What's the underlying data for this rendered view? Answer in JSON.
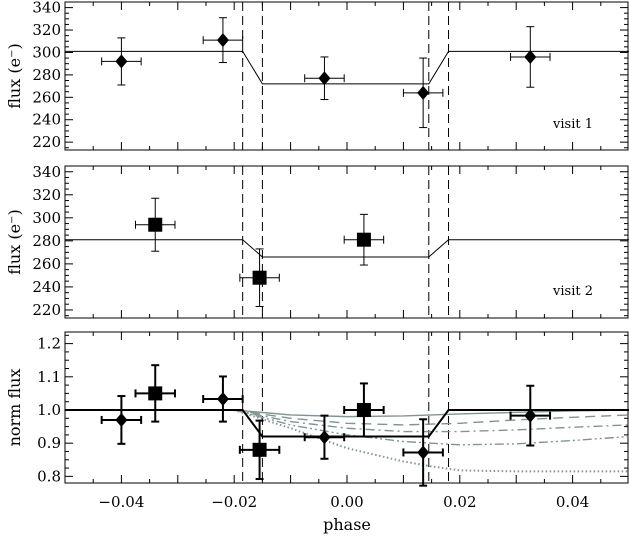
{
  "chart_data": [
    {
      "type": "scatter",
      "panel": "visit1",
      "ylabel": "flux (e⁻)",
      "annotation": "visit 1",
      "xlim": [
        -0.05,
        0.05
      ],
      "ylim": [
        213,
        345
      ],
      "yticks": [
        220,
        240,
        260,
        280,
        300,
        320,
        340
      ],
      "marker": "diamond",
      "points": [
        {
          "x": -0.04,
          "y": 292,
          "xerr": 0.0035,
          "yerr": 21
        },
        {
          "x": -0.022,
          "y": 311,
          "xerr": 0.0035,
          "yerr": 20
        },
        {
          "x": -0.004,
          "y": 277,
          "xerr": 0.0035,
          "yerr": 19
        },
        {
          "x": 0.0135,
          "y": 264,
          "xerr": 0.0035,
          "yerr": 31
        },
        {
          "x": 0.0325,
          "y": 296,
          "xerr": 0.0035,
          "yerr": 27
        }
      ],
      "model": {
        "x": [
          -0.05,
          -0.0185,
          -0.015,
          0.0145,
          0.018,
          0.05
        ],
        "y": [
          301,
          301,
          272,
          272,
          301,
          301
        ]
      },
      "vlines": [
        -0.0185,
        -0.015,
        0.0145,
        0.018
      ]
    },
    {
      "type": "scatter",
      "panel": "visit2",
      "ylabel": "flux (e⁻)",
      "annotation": "visit 2",
      "xlim": [
        -0.05,
        0.05
      ],
      "ylim": [
        213,
        345
      ],
      "yticks": [
        220,
        240,
        260,
        280,
        300,
        320,
        340
      ],
      "marker": "square",
      "points": [
        {
          "x": -0.034,
          "y": 294,
          "xerr": 0.0035,
          "yerr": 23
        },
        {
          "x": -0.0155,
          "y": 248,
          "xerr": 0.0035,
          "yerr": 25
        },
        {
          "x": 0.003,
          "y": 281,
          "xerr": 0.0035,
          "yerr": 22
        }
      ],
      "model": {
        "x": [
          -0.05,
          -0.0185,
          -0.015,
          0.0145,
          0.018,
          0.05
        ],
        "y": [
          281,
          281,
          266,
          266,
          281,
          281
        ]
      },
      "vlines": [
        -0.0185,
        -0.015,
        0.0145,
        0.018
      ]
    },
    {
      "type": "scatter",
      "panel": "combined",
      "ylabel": "norm flux",
      "xlabel": "phase",
      "xlim": [
        -0.05,
        0.05
      ],
      "ylim": [
        0.78,
        1.235
      ],
      "yticks": [
        0.8,
        0.9,
        1.0,
        1.1,
        1.2
      ],
      "ytick_labels": [
        "0.8",
        "0.9",
        "1.0",
        "1.1",
        "1.2"
      ],
      "xticks": [
        -0.04,
        -0.02,
        0.0,
        0.02,
        0.04
      ],
      "xtick_labels": [
        "−0.04",
        "−0.02",
        "0.00",
        "0.02",
        "0.04"
      ],
      "series": [
        {
          "name": "visit 1",
          "marker": "diamond",
          "points": [
            {
              "x": -0.04,
              "y": 0.97,
              "xerr": 0.0035,
              "yerr": 0.072
            },
            {
              "x": -0.022,
              "y": 1.033,
              "xerr": 0.0035,
              "yerr": 0.068
            },
            {
              "x": -0.004,
              "y": 0.918,
              "xerr": 0.0035,
              "yerr": 0.065
            },
            {
              "x": 0.0135,
              "y": 0.872,
              "xerr": 0.0035,
              "yerr": 0.1
            },
            {
              "x": 0.0325,
              "y": 0.983,
              "xerr": 0.0035,
              "yerr": 0.09
            }
          ]
        },
        {
          "name": "visit 2",
          "marker": "square",
          "points": [
            {
              "x": -0.034,
              "y": 1.05,
              "xerr": 0.0035,
              "yerr": 0.085
            },
            {
              "x": -0.0155,
              "y": 0.88,
              "xerr": 0.0035,
              "yerr": 0.088
            },
            {
              "x": 0.003,
              "y": 1.0,
              "xerr": 0.0035,
              "yerr": 0.08
            }
          ]
        }
      ],
      "model": {
        "x": [
          -0.05,
          -0.0185,
          -0.015,
          0.0145,
          0.018,
          0.05
        ],
        "y": [
          1.0,
          1.0,
          0.92,
          0.92,
          1.0,
          1.0
        ]
      },
      "tail_models": [
        {
          "style": "solid",
          "x": [
            -0.02,
            -0.01,
            0.0,
            0.01,
            0.02,
            0.03,
            0.04,
            0.05
          ],
          "y": [
            1.0,
            0.985,
            0.98,
            0.982,
            0.988,
            0.993,
            0.997,
            1.0
          ]
        },
        {
          "style": "dashed",
          "x": [
            -0.02,
            -0.01,
            0.0,
            0.01,
            0.02,
            0.03,
            0.04,
            0.05
          ],
          "y": [
            1.0,
            0.975,
            0.96,
            0.955,
            0.96,
            0.97,
            0.978,
            0.985
          ]
        },
        {
          "style": "dashdot",
          "x": [
            -0.02,
            -0.01,
            0.0,
            0.01,
            0.02,
            0.03,
            0.04,
            0.05
          ],
          "y": [
            1.0,
            0.965,
            0.945,
            0.935,
            0.935,
            0.94,
            0.948,
            0.955
          ]
        },
        {
          "style": "dashdotdot",
          "x": [
            -0.02,
            -0.01,
            0.0,
            0.01,
            0.02,
            0.03,
            0.04,
            0.05
          ],
          "y": [
            1.0,
            0.955,
            0.925,
            0.905,
            0.895,
            0.898,
            0.908,
            0.92
          ]
        },
        {
          "style": "dotted",
          "x": [
            -0.02,
            -0.01,
            0.0,
            0.01,
            0.015,
            0.02,
            0.03,
            0.04,
            0.05
          ],
          "y": [
            1.0,
            0.945,
            0.885,
            0.845,
            0.83,
            0.818,
            0.815,
            0.815,
            0.815
          ]
        }
      ],
      "tail_color": "#7f9593",
      "vlines": [
        -0.0185,
        -0.015,
        0.0145,
        0.018
      ]
    }
  ]
}
